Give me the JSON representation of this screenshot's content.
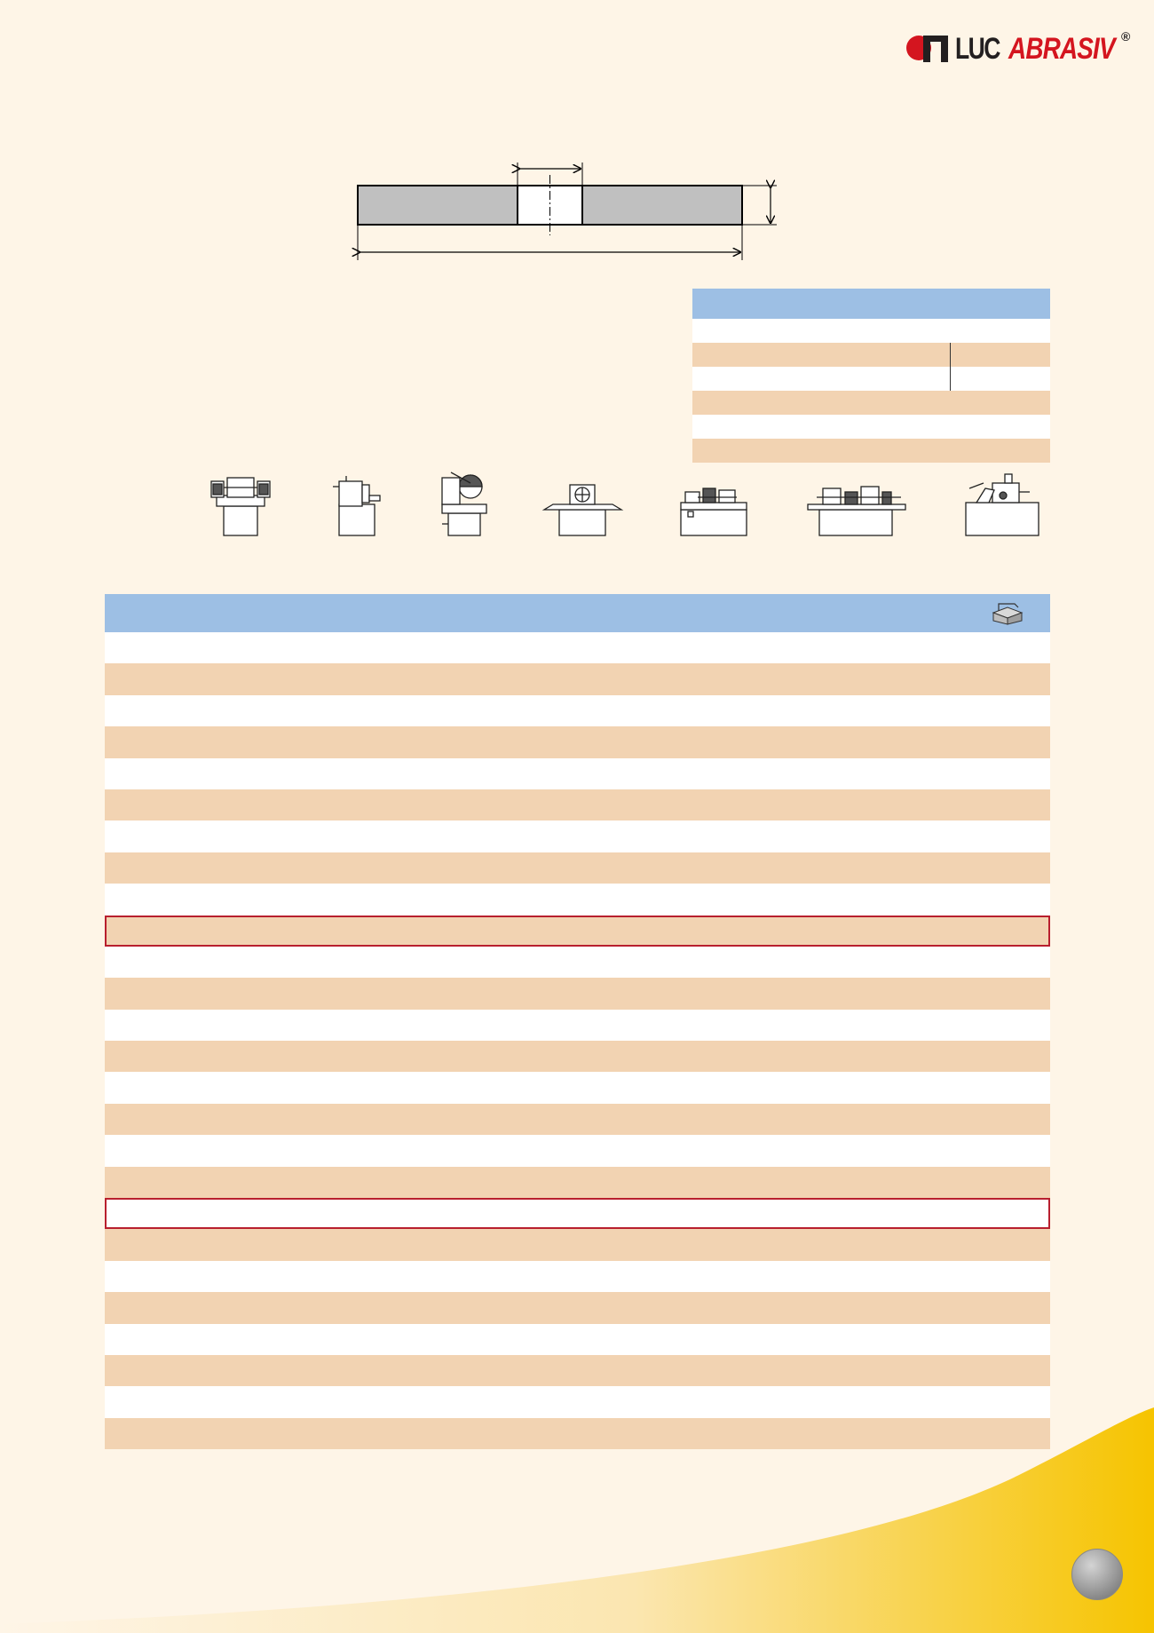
{
  "logo": {
    "part1": "LUC",
    "part2": "ABRASIV",
    "registered": "®"
  },
  "colors": {
    "background": "#fef5e7",
    "header_blue": "#9dbfe4",
    "row_beige": "#f2d3b2",
    "row_white": "#ffffff",
    "highlight_red": "#b81f2e",
    "brand_red": "#d4151f",
    "swoosh_yellow": "#f6c400"
  },
  "diagram": {
    "name": "flat-grinding-wheel"
  },
  "machines": [
    "bench-grinder-icon",
    "pedestal-grinder-icon",
    "cut-off-machine-icon",
    "surface-grinder-icon",
    "cylindrical-grinder-icon",
    "centreless-grinder-icon",
    "tool-grinder-icon"
  ],
  "spec_table": {
    "rows": [
      "white",
      "beige",
      "white",
      "beige",
      "white",
      "beige"
    ]
  },
  "main_table": {
    "header_icon": "stock-box-icon",
    "rows": 26,
    "highlighted_rows": [
      9,
      18
    ]
  }
}
